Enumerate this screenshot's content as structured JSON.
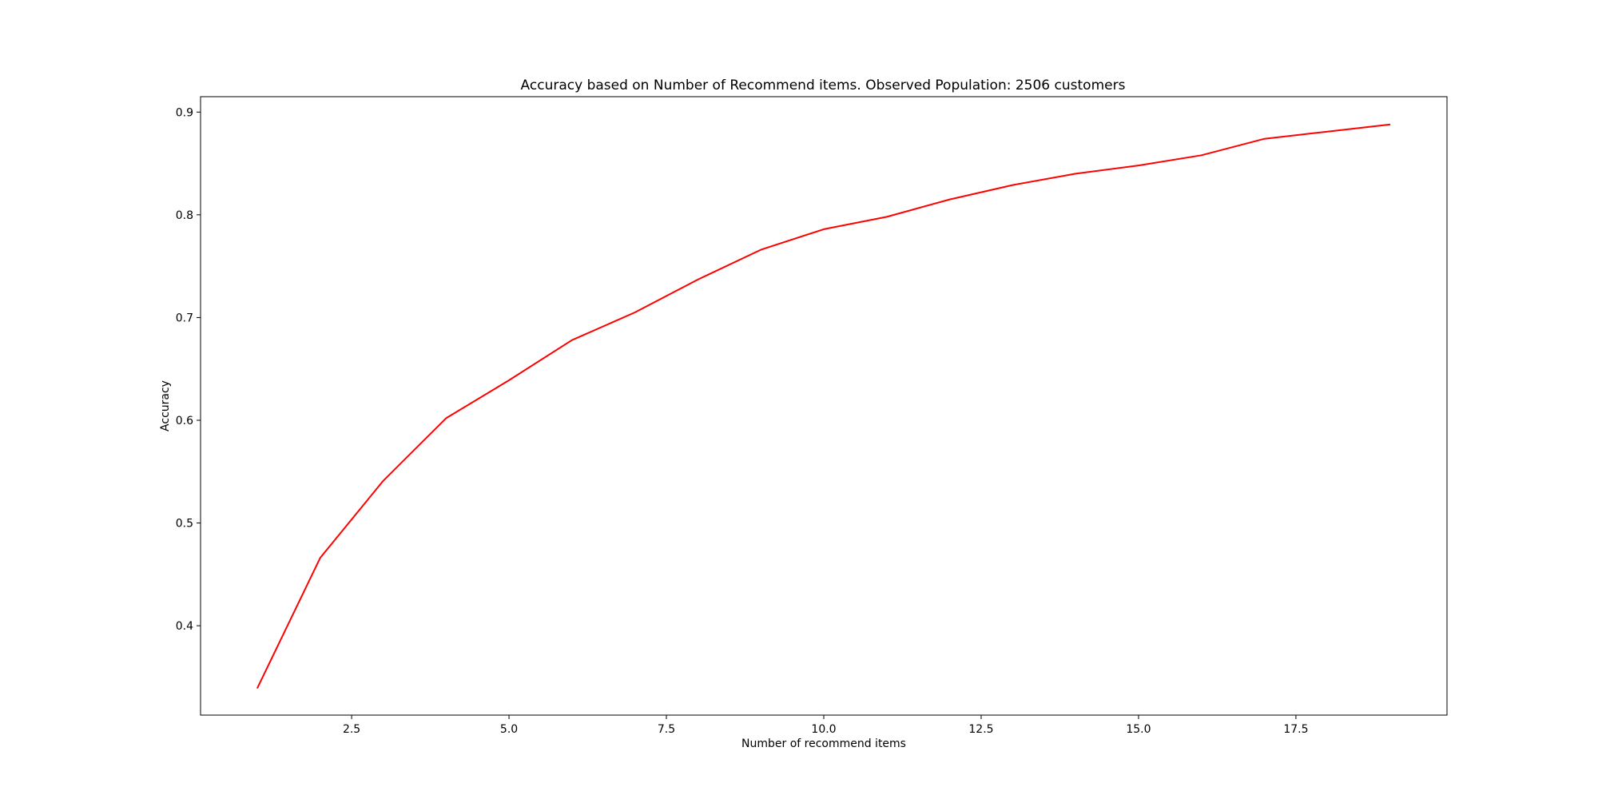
{
  "chart_data": {
    "type": "line",
    "title": "Accuracy based on Number of Recommend items. Observed Population: 2506 customers",
    "xlabel": "Number of recommend items",
    "ylabel": "Accuracy",
    "xlim": [
      0.1,
      19.9
    ],
    "ylim": [
      0.313,
      0.915
    ],
    "xticks": [
      2.5,
      5.0,
      7.5,
      10.0,
      12.5,
      15.0,
      17.5
    ],
    "xtick_labels": [
      "2.5",
      "5.0",
      "7.5",
      "10.0",
      "12.5",
      "15.0",
      "17.5"
    ],
    "yticks": [
      0.4,
      0.5,
      0.6,
      0.7,
      0.8,
      0.9
    ],
    "ytick_labels": [
      "0.4",
      "0.5",
      "0.6",
      "0.7",
      "0.8",
      "0.9"
    ],
    "grid": false,
    "series": [
      {
        "color": "#ff0000",
        "x": [
          1,
          2,
          3,
          4,
          5,
          6,
          7,
          8,
          9,
          10,
          11,
          12,
          13,
          14,
          15,
          16,
          17,
          18,
          19
        ],
        "y": [
          0.339,
          0.466,
          0.541,
          0.602,
          0.639,
          0.678,
          0.705,
          0.737,
          0.766,
          0.786,
          0.798,
          0.815,
          0.829,
          0.84,
          0.848,
          0.858,
          0.874,
          0.881,
          0.888
        ]
      }
    ]
  }
}
